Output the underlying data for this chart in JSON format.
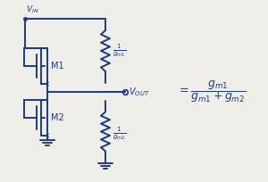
{
  "bg_color": "#f0eee8",
  "ink_color": "#1a3a8c",
  "figsize": [
    3.0,
    2.04
  ],
  "dpi": 100,
  "m1_label": "M1",
  "m2_label": "M2",
  "vin_label": "$V_{IN}$",
  "vout_label": "$V_{OUT}$",
  "res1_label": "$\\frac{1}{g_{m1}}$",
  "res2_label": "$\\frac{1}{g_{m2}}$",
  "eq_text": "$= \\dfrac{g_{m1}}{g_{m1}+g_{m2}}$"
}
